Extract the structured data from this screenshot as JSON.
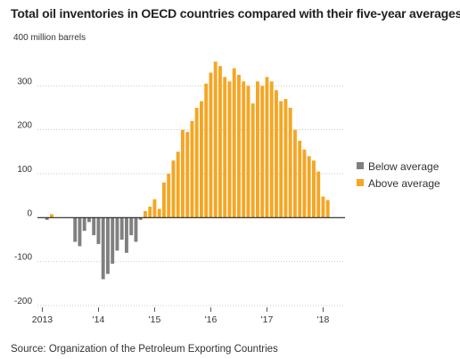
{
  "chart_data": {
    "type": "bar",
    "title": "Total oil inventories in OECD countries compared with their five-year averages",
    "source": "Source: Organization of the Petroleum Exporting Countries",
    "unit_label": "400 million barrels",
    "yticks": [
      "300",
      "200",
      "100",
      "0",
      "-100",
      "-200"
    ],
    "ylim": [
      -200,
      400
    ],
    "xticks": [
      "2013",
      "'14",
      "'15",
      "'16",
      "'17",
      "'18"
    ],
    "xrange": [
      "2013-01",
      "2018-02"
    ],
    "grid": true,
    "legend_position": "right",
    "series": [
      {
        "name": "Below average",
        "color": "#808080"
      },
      {
        "name": "Above average",
        "color": "#f5a623"
      }
    ],
    "months": [
      "2013-01",
      "2013-02",
      "2013-03",
      "2013-04",
      "2013-05",
      "2013-06",
      "2013-07",
      "2013-08",
      "2013-09",
      "2013-10",
      "2013-11",
      "2013-12",
      "2014-01",
      "2014-02",
      "2014-03",
      "2014-04",
      "2014-05",
      "2014-06",
      "2014-07",
      "2014-08",
      "2014-09",
      "2014-10",
      "2014-11",
      "2014-12",
      "2015-01",
      "2015-02",
      "2015-03",
      "2015-04",
      "2015-05",
      "2015-06",
      "2015-07",
      "2015-08",
      "2015-09",
      "2015-10",
      "2015-11",
      "2015-12",
      "2016-01",
      "2016-02",
      "2016-03",
      "2016-04",
      "2016-05",
      "2016-06",
      "2016-07",
      "2016-08",
      "2016-09",
      "2016-10",
      "2016-11",
      "2016-12",
      "2017-01",
      "2017-02",
      "2017-03",
      "2017-04",
      "2017-05",
      "2017-06",
      "2017-07",
      "2017-08",
      "2017-09",
      "2017-10",
      "2017-11",
      "2017-12",
      "2018-01",
      "2018-02"
    ],
    "values": [
      0,
      -5,
      8,
      0,
      0,
      0,
      0,
      -55,
      -65,
      -30,
      -10,
      -40,
      -60,
      -140,
      -128,
      -105,
      -75,
      -50,
      -80,
      -40,
      -55,
      -5,
      15,
      25,
      42,
      20,
      80,
      100,
      130,
      150,
      200,
      195,
      220,
      250,
      265,
      305,
      330,
      355,
      345,
      320,
      310,
      340,
      325,
      310,
      300,
      260,
      310,
      300,
      320,
      310,
      290,
      265,
      270,
      250,
      200,
      175,
      155,
      140,
      130,
      105,
      48,
      40
    ]
  }
}
